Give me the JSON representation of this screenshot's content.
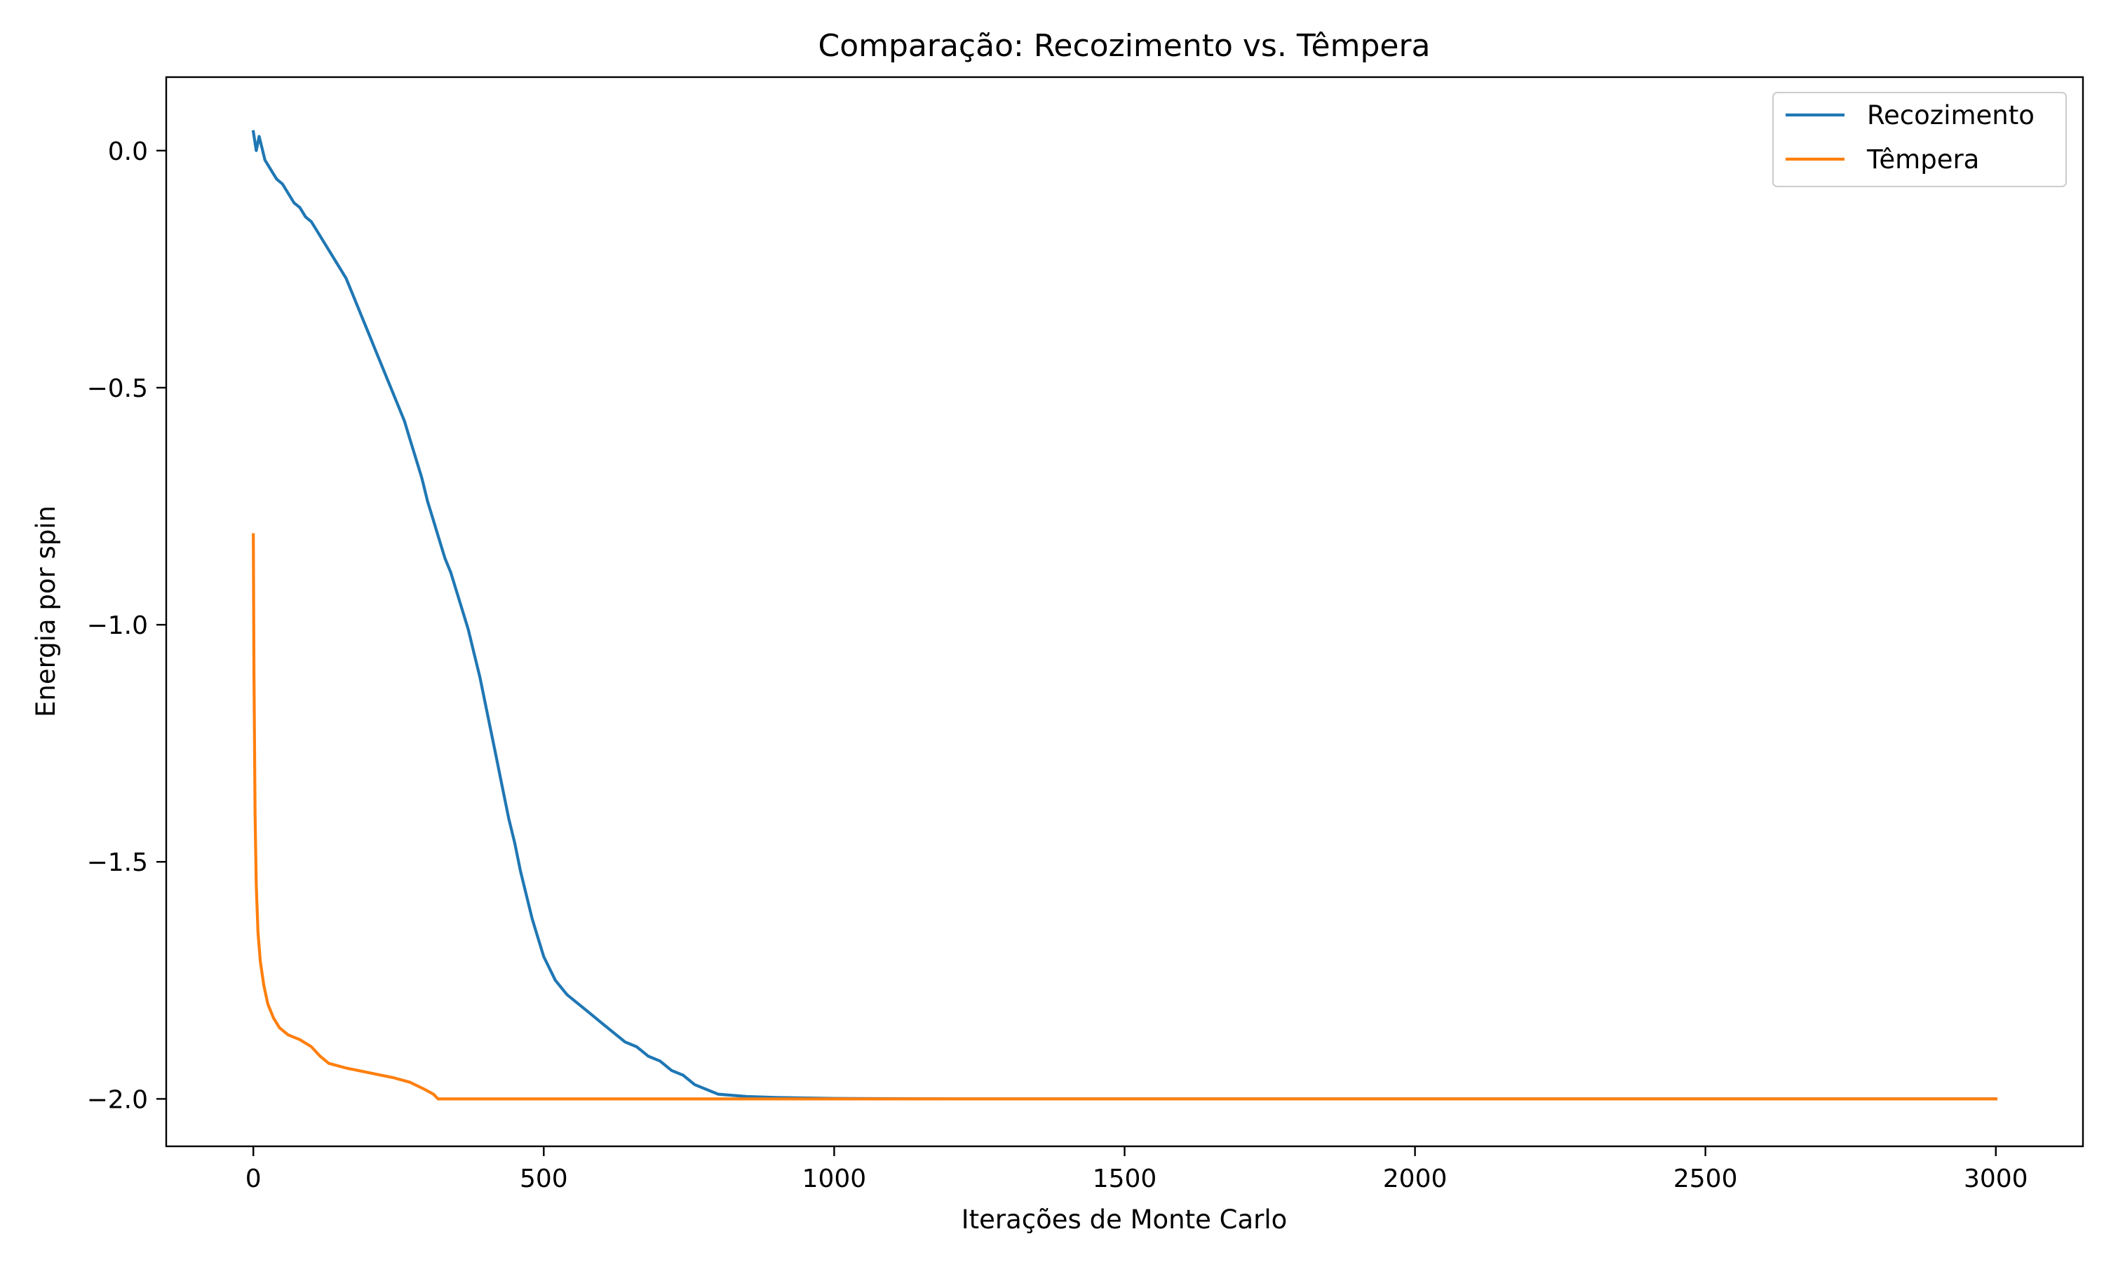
{
  "chart_data": {
    "type": "line",
    "title": "Comparação: Recozimento vs. Têmpera",
    "xlabel": "Iterações de Monte Carlo",
    "ylabel": "Energia por spin",
    "xlim": [
      -150,
      3150
    ],
    "ylim": [
      -2.1,
      0.155
    ],
    "xticks": [
      0,
      500,
      1000,
      1500,
      2000,
      2500,
      3000
    ],
    "xtick_labels": [
      "0",
      "500",
      "1000",
      "1500",
      "2000",
      "2500",
      "3000"
    ],
    "yticks": [
      0.0,
      -0.5,
      -1.0,
      -1.5,
      -2.0
    ],
    "ytick_labels": [
      "0.0",
      "−0.5",
      "−1.0",
      "−1.5",
      "−2.0"
    ],
    "grid": false,
    "legend_position": "top-right",
    "series": [
      {
        "name": "Recozimento",
        "color": "#1f77b4",
        "points": [
          [
            0,
            0.04
          ],
          [
            5,
            0.0
          ],
          [
            10,
            0.03
          ],
          [
            20,
            -0.02
          ],
          [
            30,
            -0.04
          ],
          [
            40,
            -0.06
          ],
          [
            50,
            -0.07
          ],
          [
            60,
            -0.09
          ],
          [
            70,
            -0.11
          ],
          [
            80,
            -0.12
          ],
          [
            90,
            -0.14
          ],
          [
            100,
            -0.15
          ],
          [
            110,
            -0.17
          ],
          [
            120,
            -0.19
          ],
          [
            130,
            -0.21
          ],
          [
            140,
            -0.23
          ],
          [
            150,
            -0.25
          ],
          [
            160,
            -0.27
          ],
          [
            170,
            -0.3
          ],
          [
            180,
            -0.33
          ],
          [
            190,
            -0.36
          ],
          [
            200,
            -0.39
          ],
          [
            210,
            -0.42
          ],
          [
            220,
            -0.45
          ],
          [
            230,
            -0.48
          ],
          [
            240,
            -0.51
          ],
          [
            250,
            -0.54
          ],
          [
            260,
            -0.57
          ],
          [
            270,
            -0.61
          ],
          [
            280,
            -0.65
          ],
          [
            290,
            -0.69
          ],
          [
            300,
            -0.74
          ],
          [
            310,
            -0.78
          ],
          [
            320,
            -0.82
          ],
          [
            330,
            -0.86
          ],
          [
            340,
            -0.89
          ],
          [
            350,
            -0.93
          ],
          [
            360,
            -0.97
          ],
          [
            370,
            -1.01
          ],
          [
            380,
            -1.06
          ],
          [
            390,
            -1.11
          ],
          [
            400,
            -1.17
          ],
          [
            410,
            -1.23
          ],
          [
            420,
            -1.29
          ],
          [
            430,
            -1.35
          ],
          [
            440,
            -1.41
          ],
          [
            450,
            -1.46
          ],
          [
            460,
            -1.52
          ],
          [
            470,
            -1.57
          ],
          [
            480,
            -1.62
          ],
          [
            490,
            -1.66
          ],
          [
            500,
            -1.7
          ],
          [
            520,
            -1.75
          ],
          [
            540,
            -1.78
          ],
          [
            560,
            -1.8
          ],
          [
            580,
            -1.82
          ],
          [
            600,
            -1.84
          ],
          [
            620,
            -1.86
          ],
          [
            640,
            -1.88
          ],
          [
            660,
            -1.89
          ],
          [
            680,
            -1.91
          ],
          [
            700,
            -1.92
          ],
          [
            720,
            -1.94
          ],
          [
            740,
            -1.95
          ],
          [
            760,
            -1.97
          ],
          [
            780,
            -1.98
          ],
          [
            800,
            -1.99
          ],
          [
            850,
            -1.995
          ],
          [
            900,
            -1.997
          ],
          [
            1000,
            -1.999
          ],
          [
            1200,
            -2.0
          ],
          [
            3000,
            -2.0
          ]
        ]
      },
      {
        "name": "Têmpera",
        "color": "#ff7f0e",
        "points": [
          [
            0,
            -0.81
          ],
          [
            1,
            -1.1
          ],
          [
            3,
            -1.4
          ],
          [
            5,
            -1.55
          ],
          [
            8,
            -1.65
          ],
          [
            12,
            -1.71
          ],
          [
            18,
            -1.76
          ],
          [
            25,
            -1.8
          ],
          [
            35,
            -1.83
          ],
          [
            45,
            -1.85
          ],
          [
            60,
            -1.865
          ],
          [
            80,
            -1.875
          ],
          [
            100,
            -1.89
          ],
          [
            115,
            -1.91
          ],
          [
            130,
            -1.925
          ],
          [
            160,
            -1.935
          ],
          [
            200,
            -1.945
          ],
          [
            240,
            -1.955
          ],
          [
            270,
            -1.965
          ],
          [
            295,
            -1.98
          ],
          [
            310,
            -1.99
          ],
          [
            318,
            -2.0
          ],
          [
            3000,
            -2.0
          ]
        ]
      }
    ]
  }
}
